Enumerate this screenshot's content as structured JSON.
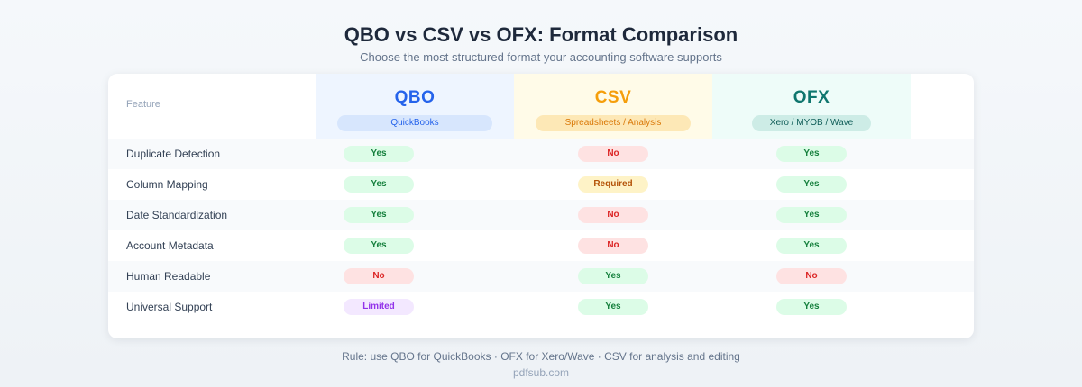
{
  "title": "QBO vs CSV vs OFX: Format Comparison",
  "subtitle": "Choose the most structured format your accounting software supports",
  "table": {
    "feature_header": "Feature",
    "columns": [
      {
        "name": "QBO",
        "subtitle": "QuickBooks",
        "color": "#2563eb"
      },
      {
        "name": "CSV",
        "subtitle": "Spreadsheets / Analysis",
        "color": "#f59e0b"
      },
      {
        "name": "OFX",
        "subtitle": "Xero / MYOB / Wave",
        "color": "#0f766e"
      }
    ],
    "rows": [
      {
        "feature": "Duplicate Detection",
        "values": [
          "Yes",
          "No",
          "Yes"
        ]
      },
      {
        "feature": "Column Mapping",
        "values": [
          "Yes",
          "Required",
          "Yes"
        ]
      },
      {
        "feature": "Date Standardization",
        "values": [
          "Yes",
          "No",
          "Yes"
        ]
      },
      {
        "feature": "Account Metadata",
        "values": [
          "Yes",
          "No",
          "Yes"
        ]
      },
      {
        "feature": "Human Readable",
        "values": [
          "No",
          "Yes",
          "No"
        ]
      },
      {
        "feature": "Universal Support",
        "values": [
          "Limited",
          "Yes",
          "Yes"
        ]
      }
    ]
  },
  "status_colors": {
    "Yes": "#15803d",
    "No": "#dc2626",
    "Required": "#b45309",
    "Limited": "#9333ea"
  },
  "footer": {
    "rule": "Rule: use QBO for QuickBooks · OFX for Xero/Wave · CSV for analysis and editing",
    "site": "pdfsub.com"
  }
}
